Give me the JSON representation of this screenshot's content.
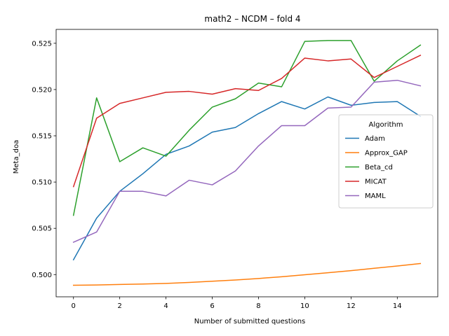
{
  "chart_data": {
    "type": "line",
    "title": "math2 – NCDM – fold 4",
    "xlabel": "Number of submitted questions",
    "ylabel": "Meta_doa",
    "x": [
      0,
      1,
      2,
      3,
      4,
      5,
      6,
      7,
      8,
      9,
      10,
      11,
      12,
      13,
      14,
      15
    ],
    "xlim": [
      -0.75,
      15.75
    ],
    "ylim": [
      0.4976,
      0.5265
    ],
    "xticks": [
      0,
      2,
      4,
      6,
      8,
      10,
      12,
      14
    ],
    "yticks": [
      0.5,
      0.505,
      0.51,
      0.515,
      0.52,
      0.525
    ],
    "ytick_labels": [
      "0.500",
      "0.505",
      "0.510",
      "0.515",
      "0.520",
      "0.525"
    ],
    "grid": false,
    "legend": {
      "title": "Algorithm",
      "placement": "center-right"
    },
    "series": [
      {
        "name": "Adam",
        "color": "#1f77b4",
        "values": [
          0.5016,
          0.5061,
          0.509,
          0.5109,
          0.513,
          0.5139,
          0.5154,
          0.5159,
          0.5174,
          0.5187,
          0.5179,
          0.5192,
          0.5183,
          0.5186,
          0.5187,
          0.5171
        ]
      },
      {
        "name": "Approx_GAP",
        "color": "#ff7f0e",
        "values": [
          0.49885,
          0.49888,
          0.49893,
          0.49898,
          0.49905,
          0.49915,
          0.49928,
          0.49942,
          0.49958,
          0.49977,
          0.49998,
          0.5002,
          0.50043,
          0.50068,
          0.50093,
          0.5012
        ]
      },
      {
        "name": "Beta_cd",
        "color": "#2ca02c",
        "values": [
          0.5064,
          0.5191,
          0.5122,
          0.5137,
          0.5128,
          0.5156,
          0.5181,
          0.519,
          0.5207,
          0.5203,
          0.5252,
          0.5253,
          0.5253,
          0.5209,
          0.5231,
          0.5248
        ]
      },
      {
        "name": "MICAT",
        "color": "#d62728",
        "values": [
          0.5095,
          0.5169,
          0.5185,
          0.5191,
          0.5197,
          0.5198,
          0.5195,
          0.5201,
          0.5199,
          0.5212,
          0.5234,
          0.5231,
          0.5233,
          0.5213,
          0.5225,
          0.5237
        ]
      },
      {
        "name": "MAML",
        "color": "#9467bd",
        "values": [
          0.5035,
          0.5046,
          0.509,
          0.509,
          0.5085,
          0.5102,
          0.5097,
          0.5112,
          0.5139,
          0.5161,
          0.5161,
          0.518,
          0.5181,
          0.5208,
          0.521,
          0.5204
        ]
      }
    ]
  }
}
